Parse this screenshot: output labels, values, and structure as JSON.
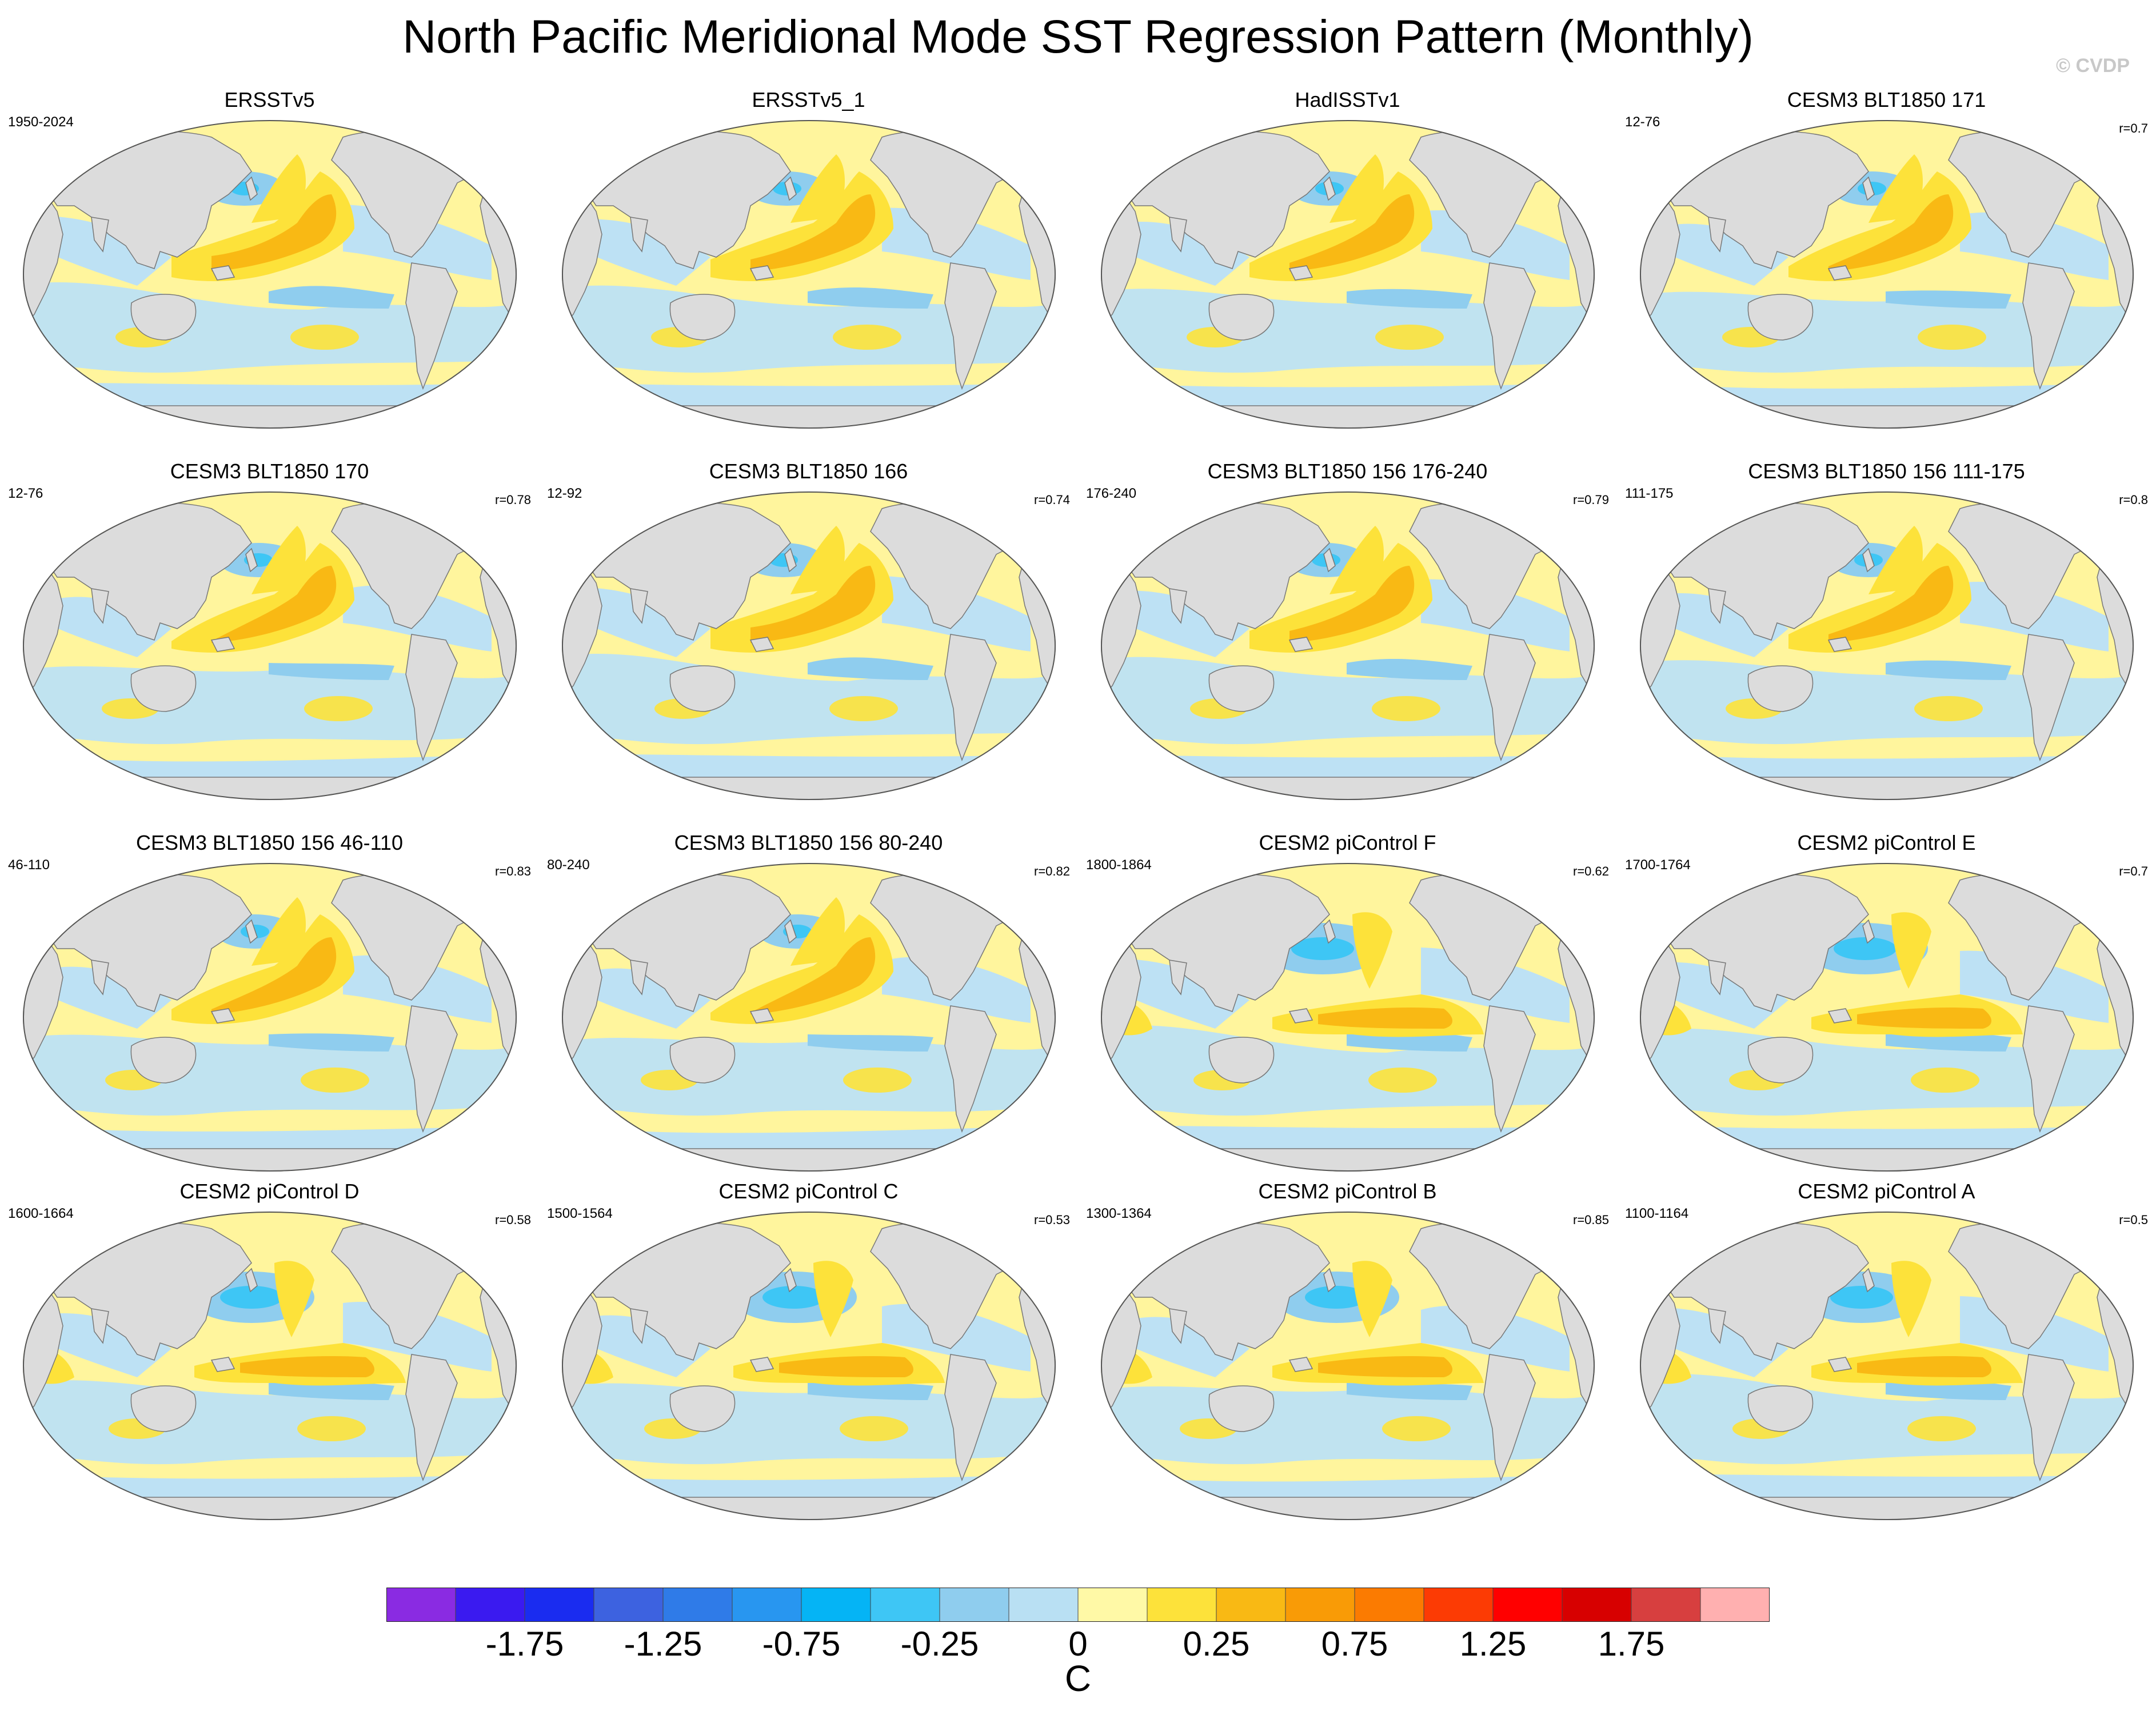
{
  "title": "North Pacific Meridional Mode SST Regression Pattern (Monthly)",
  "watermark": "© CVDP",
  "panels": [
    {
      "title": "ERSSTv5",
      "left": "1950-2024",
      "right": "",
      "variant": 0
    },
    {
      "title": "ERSSTv5_1",
      "left": "",
      "right": "",
      "variant": 1
    },
    {
      "title": "HadISSTv1",
      "left": "",
      "right": "",
      "variant": 2
    },
    {
      "title": "CESM3 BLT1850 171",
      "left": "12-76",
      "right": "r=0.7",
      "variant": 3
    },
    {
      "title": "CESM3 BLT1850 170",
      "left": "12-76",
      "right": "r=0.78",
      "variant": 4
    },
    {
      "title": "CESM3 BLT1850 166",
      "left": "12-92",
      "right": "r=0.74",
      "variant": 5
    },
    {
      "title": "CESM3 BLT1850 156 176-240",
      "left": "176-240",
      "right": "r=0.79",
      "variant": 6
    },
    {
      "title": "CESM3 BLT1850 156 111-175",
      "left": "111-175",
      "right": "r=0.8",
      "variant": 7
    },
    {
      "title": "CESM3 BLT1850 156 46-110",
      "left": "46-110",
      "right": "r=0.83",
      "variant": 8
    },
    {
      "title": "CESM3 BLT1850 156 80-240",
      "left": "80-240",
      "right": "r=0.82",
      "variant": 9
    },
    {
      "title": "CESM2 piControl F",
      "left": "1800-1864",
      "right": "r=0.62",
      "variant": 10
    },
    {
      "title": "CESM2 piControl E",
      "left": "1700-1764",
      "right": "r=0.7",
      "variant": 11
    },
    {
      "title": "CESM2 piControl D",
      "left": "1600-1664",
      "right": "r=0.58",
      "variant": 12
    },
    {
      "title": "CESM2 piControl C",
      "left": "1500-1564",
      "right": "r=0.53",
      "variant": 13
    },
    {
      "title": "CESM2 piControl B",
      "left": "1300-1364",
      "right": "r=0.85",
      "variant": 14
    },
    {
      "title": "CESM2 piControl A",
      "left": "1100-1164",
      "right": "r=0.5",
      "variant": 15
    }
  ],
  "colorbar": {
    "unit": "C",
    "colors": [
      "#8a2be2",
      "#3a1af0",
      "#1a2cf0",
      "#3d62e0",
      "#2f7be8",
      "#2896f0",
      "#05b4f5",
      "#3ec6f5",
      "#8fcdee",
      "#b9e0f3",
      "#fff9a6",
      "#fde23a",
      "#f9b914",
      "#f99b06",
      "#fb7b01",
      "#fc3b04",
      "#ff0000",
      "#d70000",
      "#d73f3f",
      "#ffb0b0"
    ],
    "ticks": [
      "-1.75",
      "-1.25",
      "-0.75",
      "-0.25",
      "0",
      "0.25",
      "0.75",
      "1.25",
      "1.75"
    ]
  },
  "colors": {
    "land": "#dcdcdc",
    "ocean_weak_warm": "#fff59d",
    "ocean_weak_cool": "#bde1f4"
  }
}
